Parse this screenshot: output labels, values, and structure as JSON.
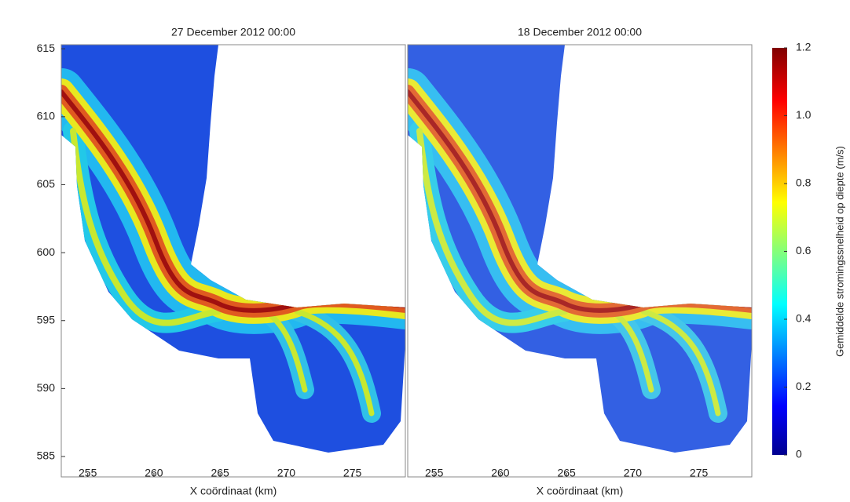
{
  "chart_data": [
    {
      "type": "map",
      "title": "27 December 2012 00:00",
      "xlabel": "X coördinaat (km)",
      "xlim": [
        253,
        279
      ],
      "xticks": [
        255,
        260,
        265,
        270,
        275
      ],
      "ylim": [
        583.5,
        615.3
      ],
      "yticks": [
        585,
        590,
        595,
        600,
        605,
        610,
        615
      ]
    },
    {
      "type": "map",
      "title": "18 December 2012 00:00",
      "xlabel": "X coördinaat (km)",
      "xlim": [
        253,
        279
      ],
      "xticks": [
        255,
        260,
        265,
        270,
        275
      ],
      "colorbar": {
        "label": "Gemiddelde stromingssnelheid op diepte (m/s)",
        "lim": [
          0,
          1.2
        ],
        "ticks": [
          0,
          0.2,
          0.4,
          0.6,
          0.8,
          {
            "value": 1,
            "label": "1.0"
          },
          1.2
        ],
        "colormap": "jet"
      }
    }
  ]
}
